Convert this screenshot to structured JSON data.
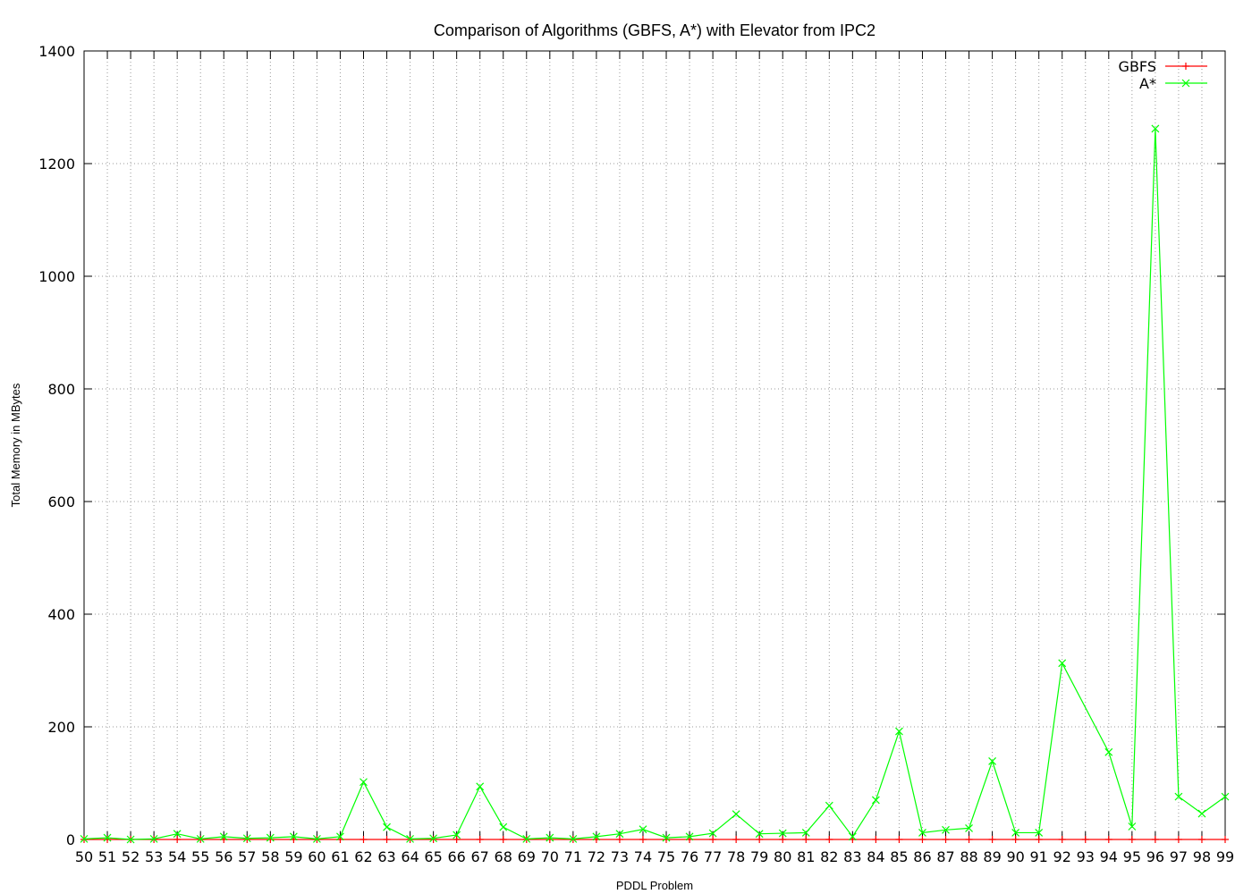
{
  "chart_data": {
    "type": "line",
    "title": "Comparison of Algorithms (GBFS, A*) with Elevator from IPC2",
    "xlabel": "PDDL Problem",
    "ylabel": "Total Memory in MBytes",
    "ylim": [
      0,
      1400
    ],
    "y_ticks": [
      0,
      200,
      400,
      600,
      800,
      1000,
      1200,
      1400
    ],
    "x_ticks": [
      50,
      51,
      52,
      53,
      54,
      55,
      56,
      57,
      58,
      59,
      60,
      61,
      62,
      63,
      64,
      65,
      66,
      67,
      68,
      69,
      70,
      71,
      72,
      73,
      74,
      75,
      76,
      77,
      78,
      79,
      80,
      81,
      82,
      83,
      84,
      85,
      86,
      87,
      88,
      89,
      90,
      91,
      92,
      93,
      94,
      95,
      96,
      97,
      98,
      99
    ],
    "xlim": [
      50,
      99
    ],
    "grid": true,
    "legend_position": "top-right",
    "series": [
      {
        "name": "GBFS",
        "color": "#ff0000",
        "marker": "plus",
        "x": [
          50,
          51,
          52,
          53,
          54,
          55,
          56,
          57,
          58,
          59,
          60,
          61,
          62,
          63,
          64,
          65,
          66,
          67,
          68,
          69,
          70,
          71,
          72,
          73,
          74,
          75,
          76,
          77,
          78,
          79,
          80,
          81,
          82,
          83,
          84,
          85,
          86,
          87,
          88,
          89,
          90,
          91,
          92,
          93,
          94,
          95,
          96,
          97,
          98,
          99
        ],
        "values": [
          0,
          0,
          0,
          0,
          0,
          0,
          0,
          0,
          0,
          0,
          0,
          0,
          0,
          0,
          0,
          0,
          0,
          0,
          0,
          0,
          0,
          0,
          0,
          0,
          0,
          0,
          0,
          0,
          0,
          0,
          0,
          0,
          0,
          0,
          0,
          0,
          0,
          0,
          0,
          0,
          0,
          0,
          0,
          0,
          0,
          0,
          0,
          0,
          0,
          0
        ]
      },
      {
        "name": "A*",
        "color": "#00ff00",
        "marker": "cross",
        "x": [
          50,
          51,
          52,
          53,
          54,
          55,
          56,
          57,
          58,
          59,
          60,
          61,
          62,
          63,
          64,
          65,
          66,
          67,
          68,
          69,
          70,
          71,
          72,
          73,
          74,
          75,
          76,
          77,
          78,
          79,
          80,
          81,
          82,
          83,
          84,
          85,
          86,
          87,
          88,
          89,
          90,
          91,
          92,
          94,
          95,
          96,
          97,
          98,
          99
        ],
        "values": [
          1,
          3,
          0,
          1,
          10,
          1,
          5,
          2,
          3,
          5,
          1,
          5,
          102,
          22,
          1,
          2,
          8,
          94,
          22,
          1,
          3,
          1,
          5,
          10,
          18,
          3,
          5,
          11,
          45,
          10,
          11,
          12,
          60,
          5,
          70,
          192,
          12,
          17,
          20,
          139,
          12,
          12,
          313,
          155,
          23,
          1262,
          76,
          46,
          76
        ]
      }
    ]
  }
}
